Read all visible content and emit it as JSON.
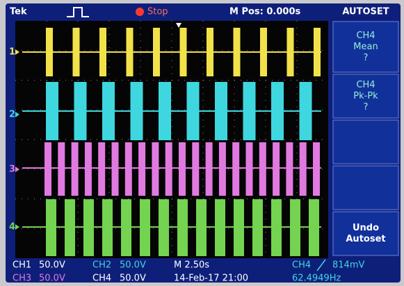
{
  "header": {
    "brand": "Tek",
    "state": "Stop",
    "position": "M Pos: 0.000s"
  },
  "menu": {
    "title": "AUTOSET",
    "items": [
      {
        "lines": [
          "CH4",
          "Mean",
          "?"
        ]
      },
      {
        "lines": [
          "CH4",
          "Pk-Pk",
          "?"
        ]
      },
      {
        "lines": [
          "Undo",
          "Autoset"
        ]
      }
    ]
  },
  "channel_markers": [
    "1",
    "2",
    "3",
    "4"
  ],
  "status": {
    "row1": [
      "CH1",
      "50.0V",
      "CH2",
      "50.0V",
      "M 2.50s",
      "CH4",
      "814mV"
    ],
    "row2": [
      "CH3",
      "50.0V",
      "CH4",
      "50.0V",
      "14-Feb-17 21:00",
      "62.4949Hz"
    ]
  }
}
